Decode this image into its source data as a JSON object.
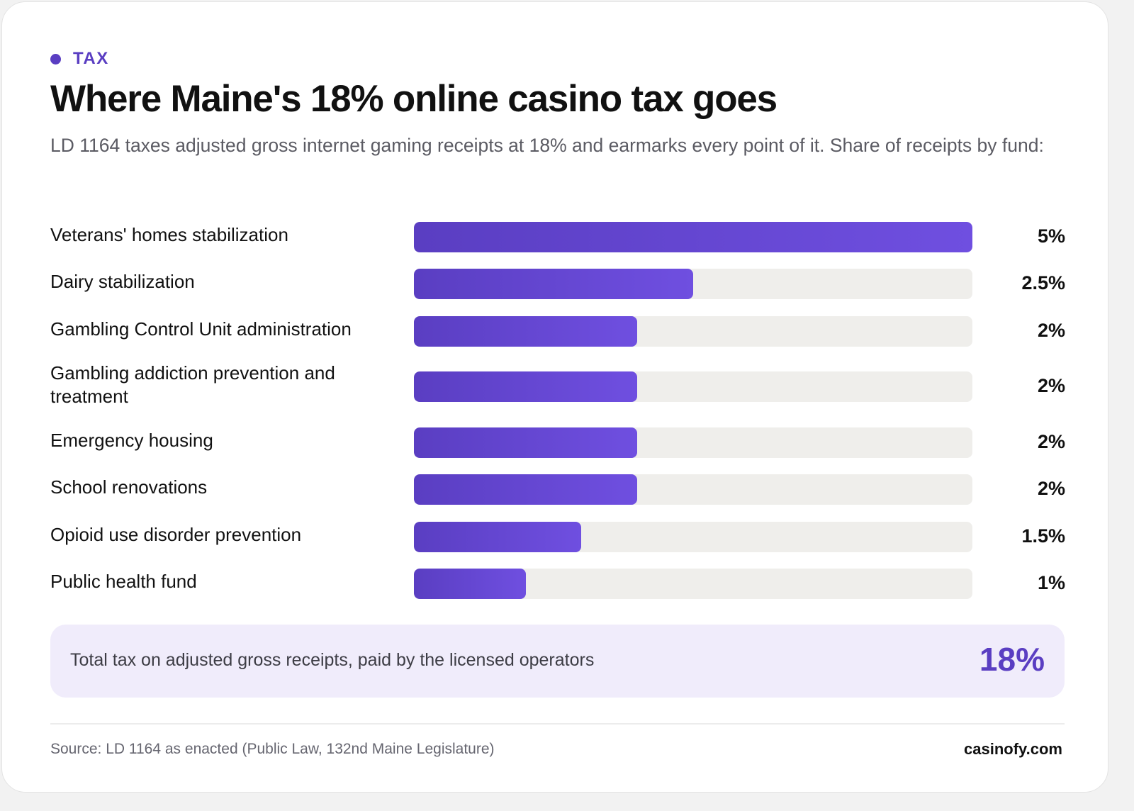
{
  "tag": {
    "label": "TAX"
  },
  "colors": {
    "accent": "#5a3ec2",
    "accent_light": "#6f4fe0",
    "track": "#efeeeb",
    "total_bg": "#f0ecfb"
  },
  "header": {
    "title": "Where Maine's 18% online casino tax goes",
    "subtitle": "LD 1164 taxes adjusted gross internet gaming receipts at 18% and earmarks every point of it. Share of receipts by fund:"
  },
  "chart_data": {
    "type": "bar",
    "orientation": "horizontal",
    "categories": [
      "Veterans' homes stabilization",
      "Dairy stabilization",
      "Gambling Control Unit administration",
      "Gambling addiction prevention and treatment",
      "Emergency housing",
      "School renovations",
      "Opioid use disorder prevention",
      "Public health fund"
    ],
    "values": [
      5,
      2.5,
      2,
      2,
      2,
      2,
      1.5,
      1
    ],
    "value_labels": [
      "5%",
      "2.5%",
      "2%",
      "2%",
      "2%",
      "2%",
      "1.5%",
      "1%"
    ],
    "xlim": [
      0,
      5
    ],
    "grid": false
  },
  "total": {
    "label": "Total tax on adjusted gross receipts, paid by the licensed operators",
    "value": "18%"
  },
  "footer": {
    "source": "Source: LD 1164 as enacted (Public Law, 132nd Maine Legislature)",
    "brand": "casinofy.com"
  }
}
